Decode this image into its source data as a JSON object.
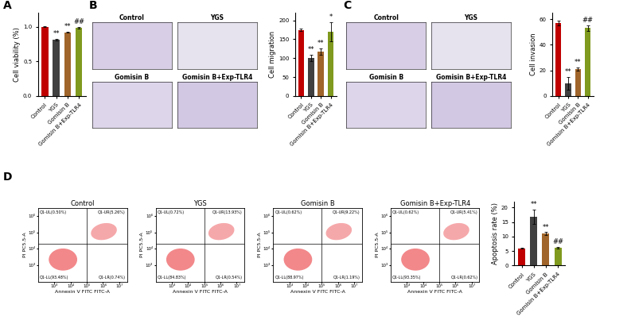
{
  "panel_labels": [
    "A",
    "B",
    "C",
    "D"
  ],
  "image_panels": [
    {
      "panel": "B",
      "labels": [
        "Control",
        "YGS",
        "Gomisin B",
        "Gomisin B+Exp-TLR4"
      ]
    },
    {
      "panel": "C",
      "labels": [
        "Control",
        "YGS",
        "Gomisin B",
        "Gomisin B+Exp-TLR4"
      ]
    }
  ],
  "chart_data": [
    {
      "type": "bar",
      "panel": "A",
      "y_label": "Cell viability (%)",
      "categories": [
        "Control",
        "YGS",
        "Gomisin B",
        "Gomisin B+Exp-TLR4"
      ],
      "values": [
        1.0,
        0.81,
        0.92,
        0.98
      ],
      "errors": [
        0.005,
        0.01,
        0.01,
        0.01
      ],
      "marks": [
        null,
        "**",
        "**",
        "##"
      ],
      "colors": [
        "#c00000",
        "#404040",
        "#a0652a",
        "#7f9a1e"
      ],
      "ylim": [
        0.0,
        1.2
      ],
      "yticks": [
        0.0,
        0.5,
        1.0
      ]
    },
    {
      "type": "bar",
      "panel": "B",
      "y_label": "Cell migration",
      "categories": [
        "Control",
        "YGS",
        "Gomisin B",
        "Gomisin B+Exp-TLR4"
      ],
      "values": [
        175,
        100,
        118,
        170
      ],
      "errors": [
        3,
        8,
        8,
        25
      ],
      "marks": [
        null,
        "**",
        "**",
        "*"
      ],
      "colors": [
        "#c00000",
        "#404040",
        "#a0652a",
        "#7f9a1e"
      ],
      "ylim": [
        0,
        220
      ],
      "yticks": [
        0,
        50,
        100,
        150,
        200
      ]
    },
    {
      "type": "bar",
      "panel": "C",
      "y_label": "Cell invasion",
      "categories": [
        "Control",
        "YGS",
        "Gomisin B",
        "Gomisin B+Exp-TLR4"
      ],
      "values": [
        57,
        10,
        21,
        53
      ],
      "errors": [
        2,
        5,
        1,
        2
      ],
      "marks": [
        null,
        "**",
        "**",
        "##"
      ],
      "colors": [
        "#c00000",
        "#404040",
        "#a0652a",
        "#7f9a1e"
      ],
      "ylim": [
        0,
        65
      ],
      "yticks": [
        0,
        20,
        40,
        60
      ]
    },
    {
      "type": "flow_cytometry",
      "panel": "D",
      "title": "Control",
      "x_label": "Annexin V FITC FITC-A",
      "y_label": "PI PC5.5-A",
      "log": true,
      "xlim": [
        100,
        30000000
      ],
      "ylim": [
        100,
        3000000
      ],
      "gate_x": 100000,
      "gate_y": 20000,
      "xticks": [
        {
          "value": 1000,
          "label": "10³"
        },
        {
          "value": 10000,
          "label": "10⁴"
        },
        {
          "value": 100000,
          "label": "10⁵"
        },
        {
          "value": 1000000,
          "label": "10⁶"
        },
        {
          "value": 10000000,
          "label": "10⁷"
        }
      ],
      "yticks": [
        {
          "value": 1000,
          "label": "10³"
        },
        {
          "value": 10000,
          "label": "10⁴"
        },
        {
          "value": 100000,
          "label": "10⁵"
        },
        {
          "value": 1000000,
          "label": "10⁶"
        }
      ],
      "quadrants": {
        "UL": "Q1-UL(0.50%)",
        "UR": "Q1-UR(5.26%)",
        "LL": "Q1-LL(93.48%)",
        "LR": "Q1-LR(0.74%)"
      }
    },
    {
      "type": "flow_cytometry",
      "panel": "D",
      "title": "YGS",
      "x_label": "Annexin V FITC FITC-A",
      "y_label": "PI PC5.5-A",
      "log": true,
      "xlim": [
        100,
        30000000
      ],
      "ylim": [
        100,
        3000000
      ],
      "gate_x": 100000,
      "gate_y": 20000,
      "xticks": [
        {
          "value": 1000,
          "label": "10³"
        },
        {
          "value": 10000,
          "label": "10⁴"
        },
        {
          "value": 100000,
          "label": "10⁵"
        },
        {
          "value": 1000000,
          "label": "10⁶"
        },
        {
          "value": 10000000,
          "label": "10⁷"
        }
      ],
      "yticks": [
        {
          "value": 1000,
          "label": "10³"
        },
        {
          "value": 10000,
          "label": "10⁴"
        },
        {
          "value": 100000,
          "label": "10⁵"
        },
        {
          "value": 1000000,
          "label": "10⁶"
        }
      ],
      "quadrants": {
        "UL": "Q1-UL(0.72%)",
        "UR": "Q1-UR(13.93%)",
        "LL": "Q1-LL(84.83%)",
        "LR": "Q1-LR(0.54%)"
      }
    },
    {
      "type": "flow_cytometry",
      "panel": "D",
      "title": "Gomisin B",
      "x_label": "Annexin V FITC FITC-A",
      "y_label": "PI PC5.5-A",
      "log": true,
      "xlim": [
        100,
        30000000
      ],
      "ylim": [
        100,
        3000000
      ],
      "gate_x": 100000,
      "gate_y": 20000,
      "xticks": [
        {
          "value": 1000,
          "label": "10³"
        },
        {
          "value": 10000,
          "label": "10⁴"
        },
        {
          "value": 100000,
          "label": "10⁵"
        },
        {
          "value": 1000000,
          "label": "10⁶"
        },
        {
          "value": 10000000,
          "label": "10⁷"
        }
      ],
      "yticks": [
        {
          "value": 1000,
          "label": "10³"
        },
        {
          "value": 10000,
          "label": "10⁴"
        },
        {
          "value": 100000,
          "label": "10⁵"
        },
        {
          "value": 1000000,
          "label": "10⁶"
        }
      ],
      "quadrants": {
        "UL": "Q1-UL(0.62%)",
        "UR": "Q1-UR(9.22%)",
        "LL": "Q1-LL(88.97%)",
        "LR": "Q1-LR(1.19%)"
      }
    },
    {
      "type": "flow_cytometry",
      "panel": "D",
      "title": "Gomisin B+Exp-TLR4",
      "x_label": "Annexin V FITC FITC-A",
      "y_label": "PI PC5.5-A",
      "log": true,
      "xlim": [
        100,
        30000000
      ],
      "ylim": [
        100,
        3000000
      ],
      "gate_x": 100000,
      "gate_y": 20000,
      "xticks": [
        {
          "value": 1000,
          "label": "10³"
        },
        {
          "value": 10000,
          "label": "10⁴"
        },
        {
          "value": 100000,
          "label": "10⁵"
        },
        {
          "value": 1000000,
          "label": "10⁶"
        },
        {
          "value": 10000000,
          "label": "10⁷"
        }
      ],
      "yticks": [
        {
          "value": 1000,
          "label": "10³"
        },
        {
          "value": 10000,
          "label": "10⁴"
        },
        {
          "value": 100000,
          "label": "10⁵"
        },
        {
          "value": 1000000,
          "label": "10⁶"
        }
      ],
      "quadrants": {
        "UL": "Q1-UL(0.62%)",
        "UR": "Q1-UR(5.41%)",
        "LL": "Q1-LL(93.35%)",
        "LR": "Q1-LR(0.62%)"
      }
    },
    {
      "type": "bar",
      "panel": "D",
      "y_label": "Apoptosis rate (%)",
      "categories": [
        "Control",
        "YGS",
        "Gomisin B",
        "Gomisin B+Exp-TLR4"
      ],
      "values": [
        6.0,
        16.8,
        11.0,
        6.2
      ],
      "errors": [
        0.2,
        2.5,
        0.5,
        0.2
      ],
      "marks": [
        null,
        "**",
        "**",
        "##"
      ],
      "colors": [
        "#c00000",
        "#404040",
        "#a0652a",
        "#7f9a1e"
      ],
      "ylim": [
        0,
        22
      ],
      "yticks": [
        0,
        5,
        10,
        15,
        20
      ]
    }
  ]
}
